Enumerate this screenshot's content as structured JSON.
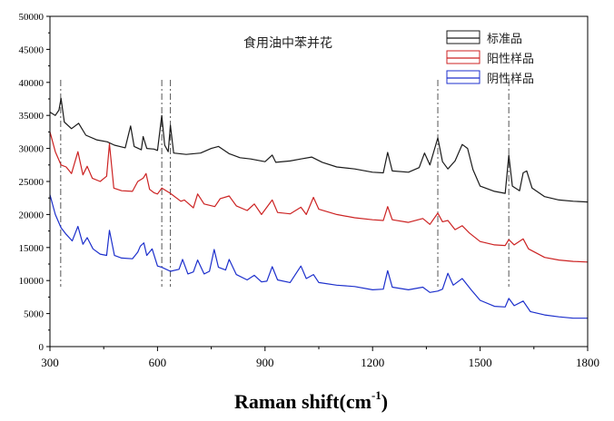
{
  "chart_data": {
    "type": "line",
    "title": "食用油中苯并花",
    "xlabel": "Raman shift(cm",
    "xlabel_unit_superscript": "-1",
    "xlabel_close": ")",
    "ylabel": "",
    "xlim": [
      300,
      1800
    ],
    "ylim": [
      0,
      50000
    ],
    "x_ticks": [
      300,
      600,
      900,
      1200,
      1500,
      1800
    ],
    "y_ticks": [
      0,
      5000,
      10000,
      15000,
      20000,
      25000,
      30000,
      35000,
      40000,
      45000,
      50000
    ],
    "legend_position": "top-right",
    "grid": false,
    "reference_lines_x": [
      330,
      612,
      636,
      1382,
      1580
    ],
    "series": [
      {
        "name": "标准品",
        "color": "#1a1a1a",
        "points": [
          [
            300,
            35500
          ],
          [
            315,
            35000
          ],
          [
            325,
            35800
          ],
          [
            331,
            37600
          ],
          [
            340,
            34000
          ],
          [
            360,
            33000
          ],
          [
            380,
            33800
          ],
          [
            400,
            32000
          ],
          [
            430,
            31300
          ],
          [
            460,
            31000
          ],
          [
            480,
            30500
          ],
          [
            510,
            30100
          ],
          [
            525,
            33400
          ],
          [
            535,
            30300
          ],
          [
            555,
            29800
          ],
          [
            560,
            31800
          ],
          [
            570,
            30000
          ],
          [
            590,
            29900
          ],
          [
            600,
            29700
          ],
          [
            612,
            35000
          ],
          [
            620,
            30500
          ],
          [
            630,
            29500
          ],
          [
            636,
            33500
          ],
          [
            645,
            29300
          ],
          [
            680,
            29100
          ],
          [
            720,
            29300
          ],
          [
            750,
            30000
          ],
          [
            770,
            30300
          ],
          [
            800,
            29200
          ],
          [
            830,
            28600
          ],
          [
            860,
            28400
          ],
          [
            900,
            28000
          ],
          [
            920,
            29000
          ],
          [
            930,
            27900
          ],
          [
            970,
            28100
          ],
          [
            1000,
            28400
          ],
          [
            1030,
            28700
          ],
          [
            1060,
            27900
          ],
          [
            1100,
            27200
          ],
          [
            1150,
            26900
          ],
          [
            1200,
            26400
          ],
          [
            1230,
            26300
          ],
          [
            1242,
            29400
          ],
          [
            1255,
            26600
          ],
          [
            1300,
            26400
          ],
          [
            1330,
            27100
          ],
          [
            1345,
            29300
          ],
          [
            1360,
            27500
          ],
          [
            1382,
            31600
          ],
          [
            1395,
            28000
          ],
          [
            1410,
            26900
          ],
          [
            1430,
            28100
          ],
          [
            1450,
            30600
          ],
          [
            1465,
            30000
          ],
          [
            1480,
            26800
          ],
          [
            1500,
            24300
          ],
          [
            1540,
            23500
          ],
          [
            1570,
            23200
          ],
          [
            1580,
            29000
          ],
          [
            1590,
            24300
          ],
          [
            1610,
            23600
          ],
          [
            1620,
            26300
          ],
          [
            1630,
            26600
          ],
          [
            1645,
            24000
          ],
          [
            1680,
            22700
          ],
          [
            1720,
            22200
          ],
          [
            1760,
            22000
          ],
          [
            1800,
            21900
          ]
        ]
      },
      {
        "name": "阳性样品",
        "color": "#cc2222",
        "points": [
          [
            300,
            32500
          ],
          [
            315,
            29500
          ],
          [
            331,
            27500
          ],
          [
            345,
            27200
          ],
          [
            360,
            26200
          ],
          [
            378,
            29500
          ],
          [
            392,
            26000
          ],
          [
            404,
            27300
          ],
          [
            418,
            25500
          ],
          [
            440,
            25000
          ],
          [
            458,
            25800
          ],
          [
            466,
            30700
          ],
          [
            478,
            24000
          ],
          [
            500,
            23600
          ],
          [
            530,
            23500
          ],
          [
            545,
            25000
          ],
          [
            560,
            25500
          ],
          [
            568,
            26200
          ],
          [
            578,
            23800
          ],
          [
            590,
            23300
          ],
          [
            600,
            23100
          ],
          [
            612,
            24000
          ],
          [
            636,
            23200
          ],
          [
            665,
            22000
          ],
          [
            675,
            22200
          ],
          [
            700,
            21000
          ],
          [
            712,
            23100
          ],
          [
            730,
            21600
          ],
          [
            760,
            21200
          ],
          [
            775,
            22400
          ],
          [
            800,
            22800
          ],
          [
            820,
            21300
          ],
          [
            850,
            20600
          ],
          [
            870,
            21600
          ],
          [
            890,
            20000
          ],
          [
            920,
            22200
          ],
          [
            935,
            20300
          ],
          [
            970,
            20100
          ],
          [
            1000,
            21100
          ],
          [
            1015,
            20000
          ],
          [
            1035,
            22600
          ],
          [
            1050,
            20800
          ],
          [
            1100,
            20000
          ],
          [
            1150,
            19500
          ],
          [
            1200,
            19200
          ],
          [
            1230,
            19100
          ],
          [
            1242,
            21200
          ],
          [
            1255,
            19200
          ],
          [
            1300,
            18800
          ],
          [
            1340,
            19400
          ],
          [
            1360,
            18500
          ],
          [
            1382,
            20200
          ],
          [
            1395,
            18900
          ],
          [
            1410,
            19100
          ],
          [
            1430,
            17700
          ],
          [
            1450,
            18300
          ],
          [
            1470,
            17200
          ],
          [
            1500,
            15900
          ],
          [
            1540,
            15400
          ],
          [
            1570,
            15300
          ],
          [
            1580,
            16200
          ],
          [
            1595,
            15400
          ],
          [
            1620,
            16300
          ],
          [
            1635,
            14800
          ],
          [
            1680,
            13500
          ],
          [
            1720,
            13100
          ],
          [
            1760,
            12900
          ],
          [
            1800,
            12800
          ]
        ]
      },
      {
        "name": "阴性样品",
        "color": "#1c2fcc",
        "points": [
          [
            300,
            23000
          ],
          [
            315,
            20000
          ],
          [
            331,
            18000
          ],
          [
            345,
            17000
          ],
          [
            362,
            16000
          ],
          [
            378,
            18200
          ],
          [
            392,
            15500
          ],
          [
            404,
            16500
          ],
          [
            420,
            14800
          ],
          [
            440,
            14000
          ],
          [
            458,
            13800
          ],
          [
            466,
            17600
          ],
          [
            480,
            13800
          ],
          [
            500,
            13400
          ],
          [
            530,
            13300
          ],
          [
            545,
            14300
          ],
          [
            552,
            15200
          ],
          [
            562,
            15700
          ],
          [
            570,
            13800
          ],
          [
            585,
            14800
          ],
          [
            600,
            12200
          ],
          [
            612,
            12000
          ],
          [
            636,
            11400
          ],
          [
            660,
            11700
          ],
          [
            670,
            13200
          ],
          [
            685,
            11000
          ],
          [
            700,
            11300
          ],
          [
            712,
            13100
          ],
          [
            730,
            11000
          ],
          [
            745,
            11400
          ],
          [
            758,
            14700
          ],
          [
            770,
            12000
          ],
          [
            790,
            11600
          ],
          [
            800,
            13200
          ],
          [
            820,
            10900
          ],
          [
            850,
            10100
          ],
          [
            870,
            10800
          ],
          [
            890,
            9800
          ],
          [
            905,
            9900
          ],
          [
            920,
            12100
          ],
          [
            935,
            10100
          ],
          [
            970,
            9700
          ],
          [
            1000,
            12200
          ],
          [
            1015,
            10300
          ],
          [
            1035,
            10900
          ],
          [
            1050,
            9700
          ],
          [
            1100,
            9300
          ],
          [
            1150,
            9100
          ],
          [
            1200,
            8600
          ],
          [
            1230,
            8700
          ],
          [
            1242,
            11500
          ],
          [
            1255,
            9000
          ],
          [
            1300,
            8600
          ],
          [
            1340,
            9000
          ],
          [
            1360,
            8200
          ],
          [
            1382,
            8400
          ],
          [
            1395,
            8700
          ],
          [
            1410,
            11100
          ],
          [
            1425,
            9300
          ],
          [
            1450,
            10300
          ],
          [
            1475,
            8600
          ],
          [
            1500,
            7000
          ],
          [
            1540,
            6100
          ],
          [
            1570,
            6000
          ],
          [
            1580,
            7300
          ],
          [
            1595,
            6200
          ],
          [
            1620,
            6900
          ],
          [
            1640,
            5300
          ],
          [
            1680,
            4800
          ],
          [
            1720,
            4500
          ],
          [
            1760,
            4300
          ],
          [
            1800,
            4300
          ]
        ]
      }
    ]
  }
}
